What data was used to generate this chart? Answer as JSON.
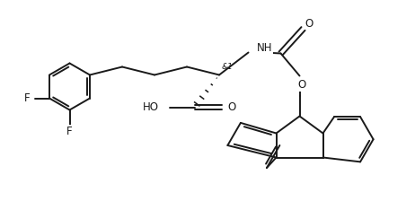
{
  "bg_color": "#ffffff",
  "line_color": "#1a1a1a",
  "line_width": 1.4,
  "font_size": 8.5,
  "fig_width": 4.62,
  "fig_height": 2.24,
  "dpi": 100,
  "xlim": [
    0,
    9.24
  ],
  "ylim": [
    0,
    4.48
  ]
}
